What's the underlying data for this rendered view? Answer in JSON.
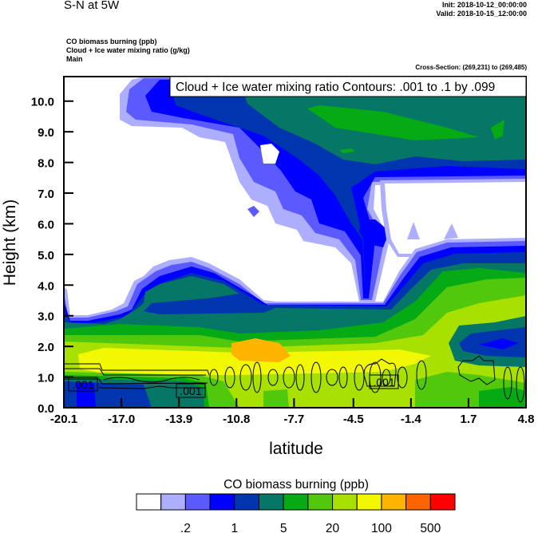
{
  "header": {
    "title": "S-N at 5W",
    "init": "Init: 2018-10-12_00:00:00",
    "valid": "Valid: 2018-10-15_12:00:00",
    "fields": [
      "CO biomass burning   (ppb)",
      "Cloud + Ice water mixing ratio   (g/kg)",
      "Main"
    ],
    "cross_section": "Cross-Section: (269,231) to (269,485)"
  },
  "chart_data": {
    "type": "heatmap",
    "subtype": "filled contour cross-section with line contour overlay",
    "contour_title": "Cloud + Ice water mixing ratio Contours: .001 to .1 by .099",
    "contour_label": ".001",
    "xlabel": "latitude",
    "ylabel": "Height (km)",
    "xlim": [
      -20.1,
      4.8
    ],
    "ylim": [
      0,
      10.8
    ],
    "xticks": [
      "-20.1",
      "-17.0",
      "-13.9",
      "-10.8",
      "-7.7",
      "-4.5",
      "-1.4",
      "1.7",
      "4.8"
    ],
    "yticks": [
      "0.0",
      "1.0",
      "2.0",
      "3.0",
      "4.0",
      "5.0",
      "6.0",
      "7.0",
      "8.0",
      "9.0",
      "10.0"
    ],
    "grid": false,
    "colorbar": {
      "title": "CO biomass burning  (ppb)",
      "placement": "bottom",
      "labels": [
        ".2",
        "1",
        "5",
        "20",
        "100",
        "500"
      ],
      "colors": [
        "#ffffff",
        "#aeaefe",
        "#5a5aff",
        "#0000ff",
        "#0035b0",
        "#067666",
        "#06aa14",
        "#52c80c",
        "#a8e000",
        "#f2f800",
        "#ffb400",
        "#ff6400",
        "#ff0000"
      ]
    }
  }
}
